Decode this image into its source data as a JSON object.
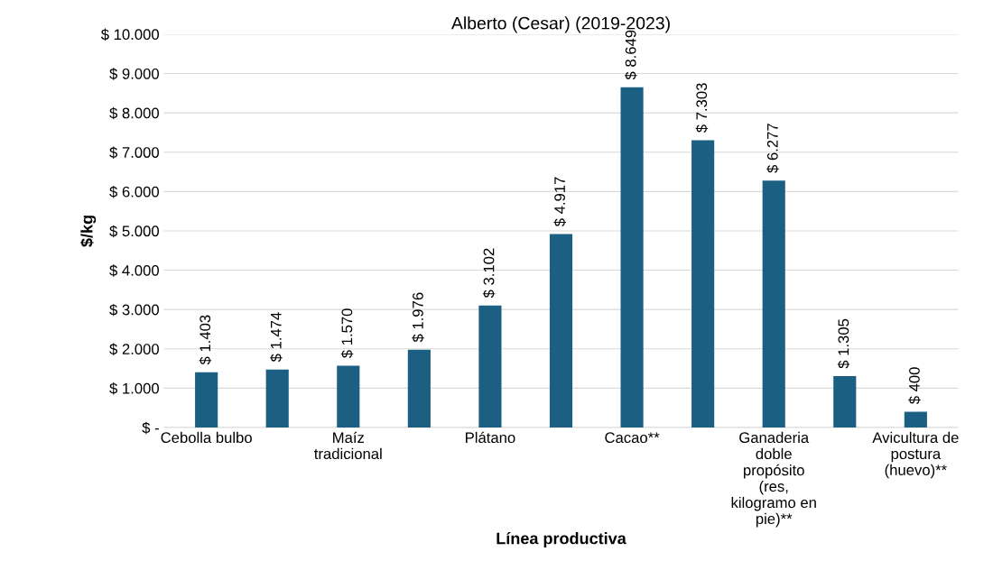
{
  "chart_data": {
    "type": "bar",
    "title": "Alberto (Cesar) (2019-2023)",
    "xlabel": "Línea productiva",
    "ylabel": "$/kg",
    "categories": [
      "Cebolla bulbo",
      null,
      "Maíz tradicional",
      null,
      "Plátano",
      null,
      "Cacao**",
      null,
      "Ganaderia doble propósito (res, kilogramo en pie)**",
      null,
      "Avicultura de postura (huevo)**"
    ],
    "values": [
      1403,
      1474,
      1570,
      1976,
      3102,
      4917,
      8649,
      7303,
      6277,
      1305,
      400
    ],
    "value_labels": [
      "$ 1.403",
      "$ 1.474",
      "$ 1.570",
      "$ 1.976",
      "$ 3.102",
      "$ 4.917",
      "$ 8.649",
      "$ 7.303",
      "$ 6.277",
      "$ 1.305",
      "$ 400"
    ],
    "color": "#1b5f82",
    "ylim": [
      0,
      10000
    ],
    "yticks": [
      {
        "value": 0,
        "label": "$ -"
      },
      {
        "value": 1000,
        "label": "$ 1.000"
      },
      {
        "value": 2000,
        "label": "$ 2.000"
      },
      {
        "value": 3000,
        "label": "$ 3.000"
      },
      {
        "value": 4000,
        "label": "$ 4.000"
      },
      {
        "value": 5000,
        "label": "$ 5.000"
      },
      {
        "value": 6000,
        "label": "$ 6.000"
      },
      {
        "value": 7000,
        "label": "$ 7.000"
      },
      {
        "value": 8000,
        "label": "$ 8.000"
      },
      {
        "value": 9000,
        "label": "$ 9.000"
      },
      {
        "value": 10000,
        "label": "$ 10.000"
      }
    ],
    "grid": "y",
    "legend": false
  }
}
